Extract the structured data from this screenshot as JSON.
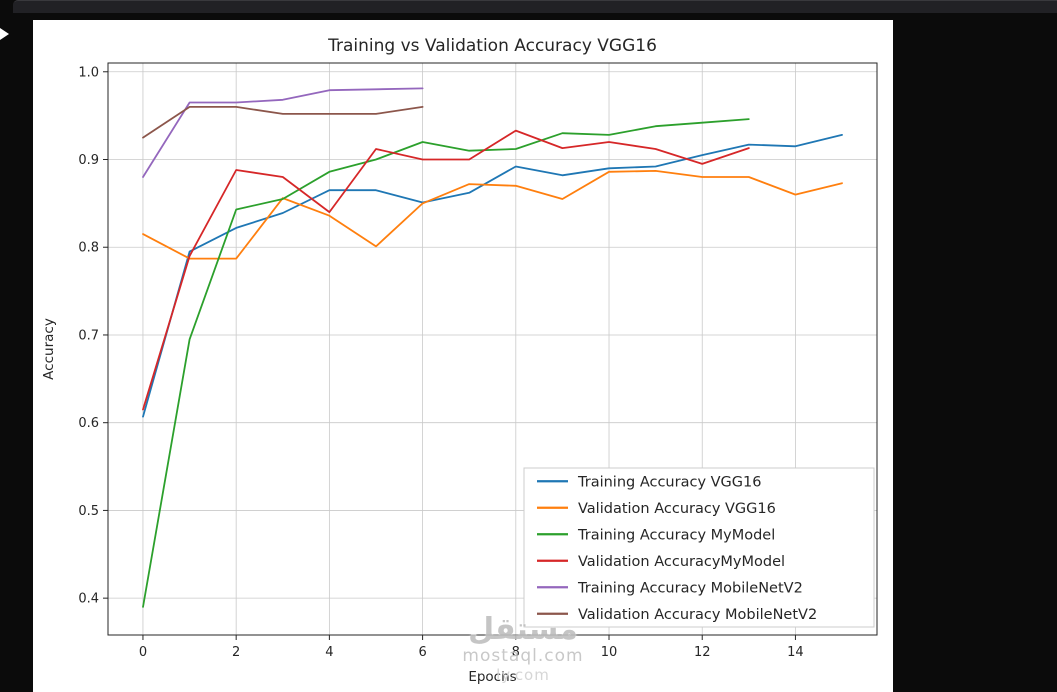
{
  "window": {
    "background": "#0b0b0b",
    "topbar_color": "#212125",
    "figure_background": "#ffffff"
  },
  "chart_data": {
    "type": "line",
    "title": "Training vs Validation Accuracy VGG16",
    "xlabel": "Epochs",
    "ylabel": "Accuracy",
    "xlim": [
      -0.75,
      15.75
    ],
    "ylim": [
      0.358,
      1.01
    ],
    "xticks": [
      0,
      2,
      4,
      6,
      8,
      10,
      12,
      14
    ],
    "yticks": [
      0.4,
      0.5,
      0.6,
      0.7,
      0.8,
      0.9,
      1.0
    ],
    "grid": true,
    "legend_position": "lower right",
    "text_color": "#262626",
    "grid_color": "#c9c9c9",
    "series": [
      {
        "name": "Training Accuracy VGG16",
        "color": "#1f77b4",
        "x": [
          0,
          1,
          2,
          3,
          4,
          5,
          6,
          7,
          8,
          9,
          10,
          11,
          12,
          13,
          14,
          15
        ],
        "y": [
          0.607,
          0.795,
          0.822,
          0.839,
          0.865,
          0.865,
          0.851,
          0.862,
          0.892,
          0.882,
          0.89,
          0.892,
          0.905,
          0.917,
          0.915,
          0.928
        ]
      },
      {
        "name": "Validation Accuracy VGG16",
        "color": "#ff7f0e",
        "x": [
          0,
          1,
          2,
          3,
          4,
          5,
          6,
          7,
          8,
          9,
          10,
          11,
          12,
          13,
          14,
          15
        ],
        "y": [
          0.815,
          0.787,
          0.787,
          0.856,
          0.836,
          0.801,
          0.85,
          0.872,
          0.87,
          0.855,
          0.886,
          0.887,
          0.88,
          0.88,
          0.86,
          0.873
        ]
      },
      {
        "name": "Training Accuracy MyModel",
        "color": "#2ca02c",
        "x": [
          0,
          1,
          2,
          3,
          4,
          5,
          6,
          7,
          8,
          9,
          10,
          11,
          12,
          13
        ],
        "y": [
          0.39,
          0.695,
          0.843,
          0.855,
          0.886,
          0.9,
          0.92,
          0.91,
          0.912,
          0.93,
          0.928,
          0.938,
          0.942,
          0.946
        ]
      },
      {
        "name": "Validation AccuracyMyModel",
        "color": "#d62728",
        "x": [
          0,
          1,
          2,
          3,
          4,
          5,
          6,
          7,
          8,
          9,
          10,
          11,
          12,
          13
        ],
        "y": [
          0.615,
          0.79,
          0.888,
          0.88,
          0.84,
          0.912,
          0.9,
          0.9,
          0.933,
          0.913,
          0.92,
          0.912,
          0.895,
          0.913
        ]
      },
      {
        "name": "Training Accuracy MobileNetV2",
        "color": "#9467bd",
        "x": [
          0,
          1,
          2,
          3,
          4,
          5,
          6
        ],
        "y": [
          0.88,
          0.965,
          0.965,
          0.968,
          0.979,
          0.98,
          0.981
        ]
      },
      {
        "name": "Validation Accuracy MobileNetV2",
        "color": "#8c564b",
        "x": [
          0,
          1,
          2,
          3,
          4,
          5,
          6
        ],
        "y": [
          0.925,
          0.96,
          0.96,
          0.952,
          0.952,
          0.952,
          0.96
        ]
      }
    ]
  },
  "watermark": {
    "line1": "مستقل",
    "line2": "mostaql.com",
    "line3": "ly.com"
  }
}
